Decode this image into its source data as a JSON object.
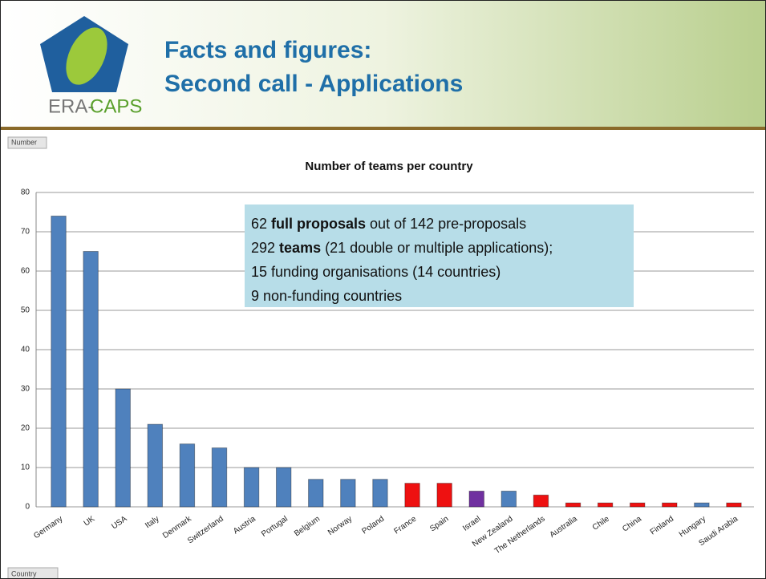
{
  "slide": {
    "logo_text": [
      "ERA-",
      "CAPS"
    ],
    "title_lines": [
      "Facts and figures:",
      "Second call - Applications"
    ],
    "field_buttons": [
      "Number",
      "Country"
    ]
  },
  "chart_data": {
    "type": "bar",
    "title": "Number of teams per country",
    "categories": [
      "Germany",
      "UK",
      "USA",
      "Italy",
      "Denmark",
      "Switzerland",
      "Austria",
      "Portugal",
      "Belgium",
      "Norway",
      "Poland",
      "France",
      "Spain",
      "Israel",
      "New Zealand",
      "The Netherlands",
      "Australia",
      "Chile",
      "China",
      "Finland",
      "Hungary",
      "Saudi Arabia"
    ],
    "values": [
      74,
      65,
      30,
      21,
      16,
      15,
      10,
      10,
      7,
      7,
      7,
      6,
      6,
      4,
      4,
      3,
      1,
      1,
      1,
      1,
      1,
      1
    ],
    "colors": [
      "#4f81bd",
      "#4f81bd",
      "#4f81bd",
      "#4f81bd",
      "#4f81bd",
      "#4f81bd",
      "#4f81bd",
      "#4f81bd",
      "#4f81bd",
      "#4f81bd",
      "#4f81bd",
      "#ee1111",
      "#ee1111",
      "#7030a0",
      "#4f81bd",
      "#ee1111",
      "#ee1111",
      "#ee1111",
      "#ee1111",
      "#ee1111",
      "#4f81bd",
      "#ee1111"
    ],
    "ylim": [
      0,
      80
    ],
    "yticks": [
      0,
      10,
      20,
      30,
      40,
      50,
      60,
      70,
      80
    ],
    "grid": true,
    "text_box": [
      [
        {
          "text": "62 "
        },
        {
          "text": "full proposals",
          "bold": true
        },
        {
          "text": " out of 142 pre-proposals"
        }
      ],
      [
        {
          "text": "292 "
        },
        {
          "text": "teams",
          "bold": true
        },
        {
          "text": " (21 double or multiple applications);"
        }
      ],
      [
        {
          "text": "15 funding organisations (14 countries)"
        }
      ],
      [
        {
          "text": "9 non-funding countries"
        }
      ]
    ]
  }
}
